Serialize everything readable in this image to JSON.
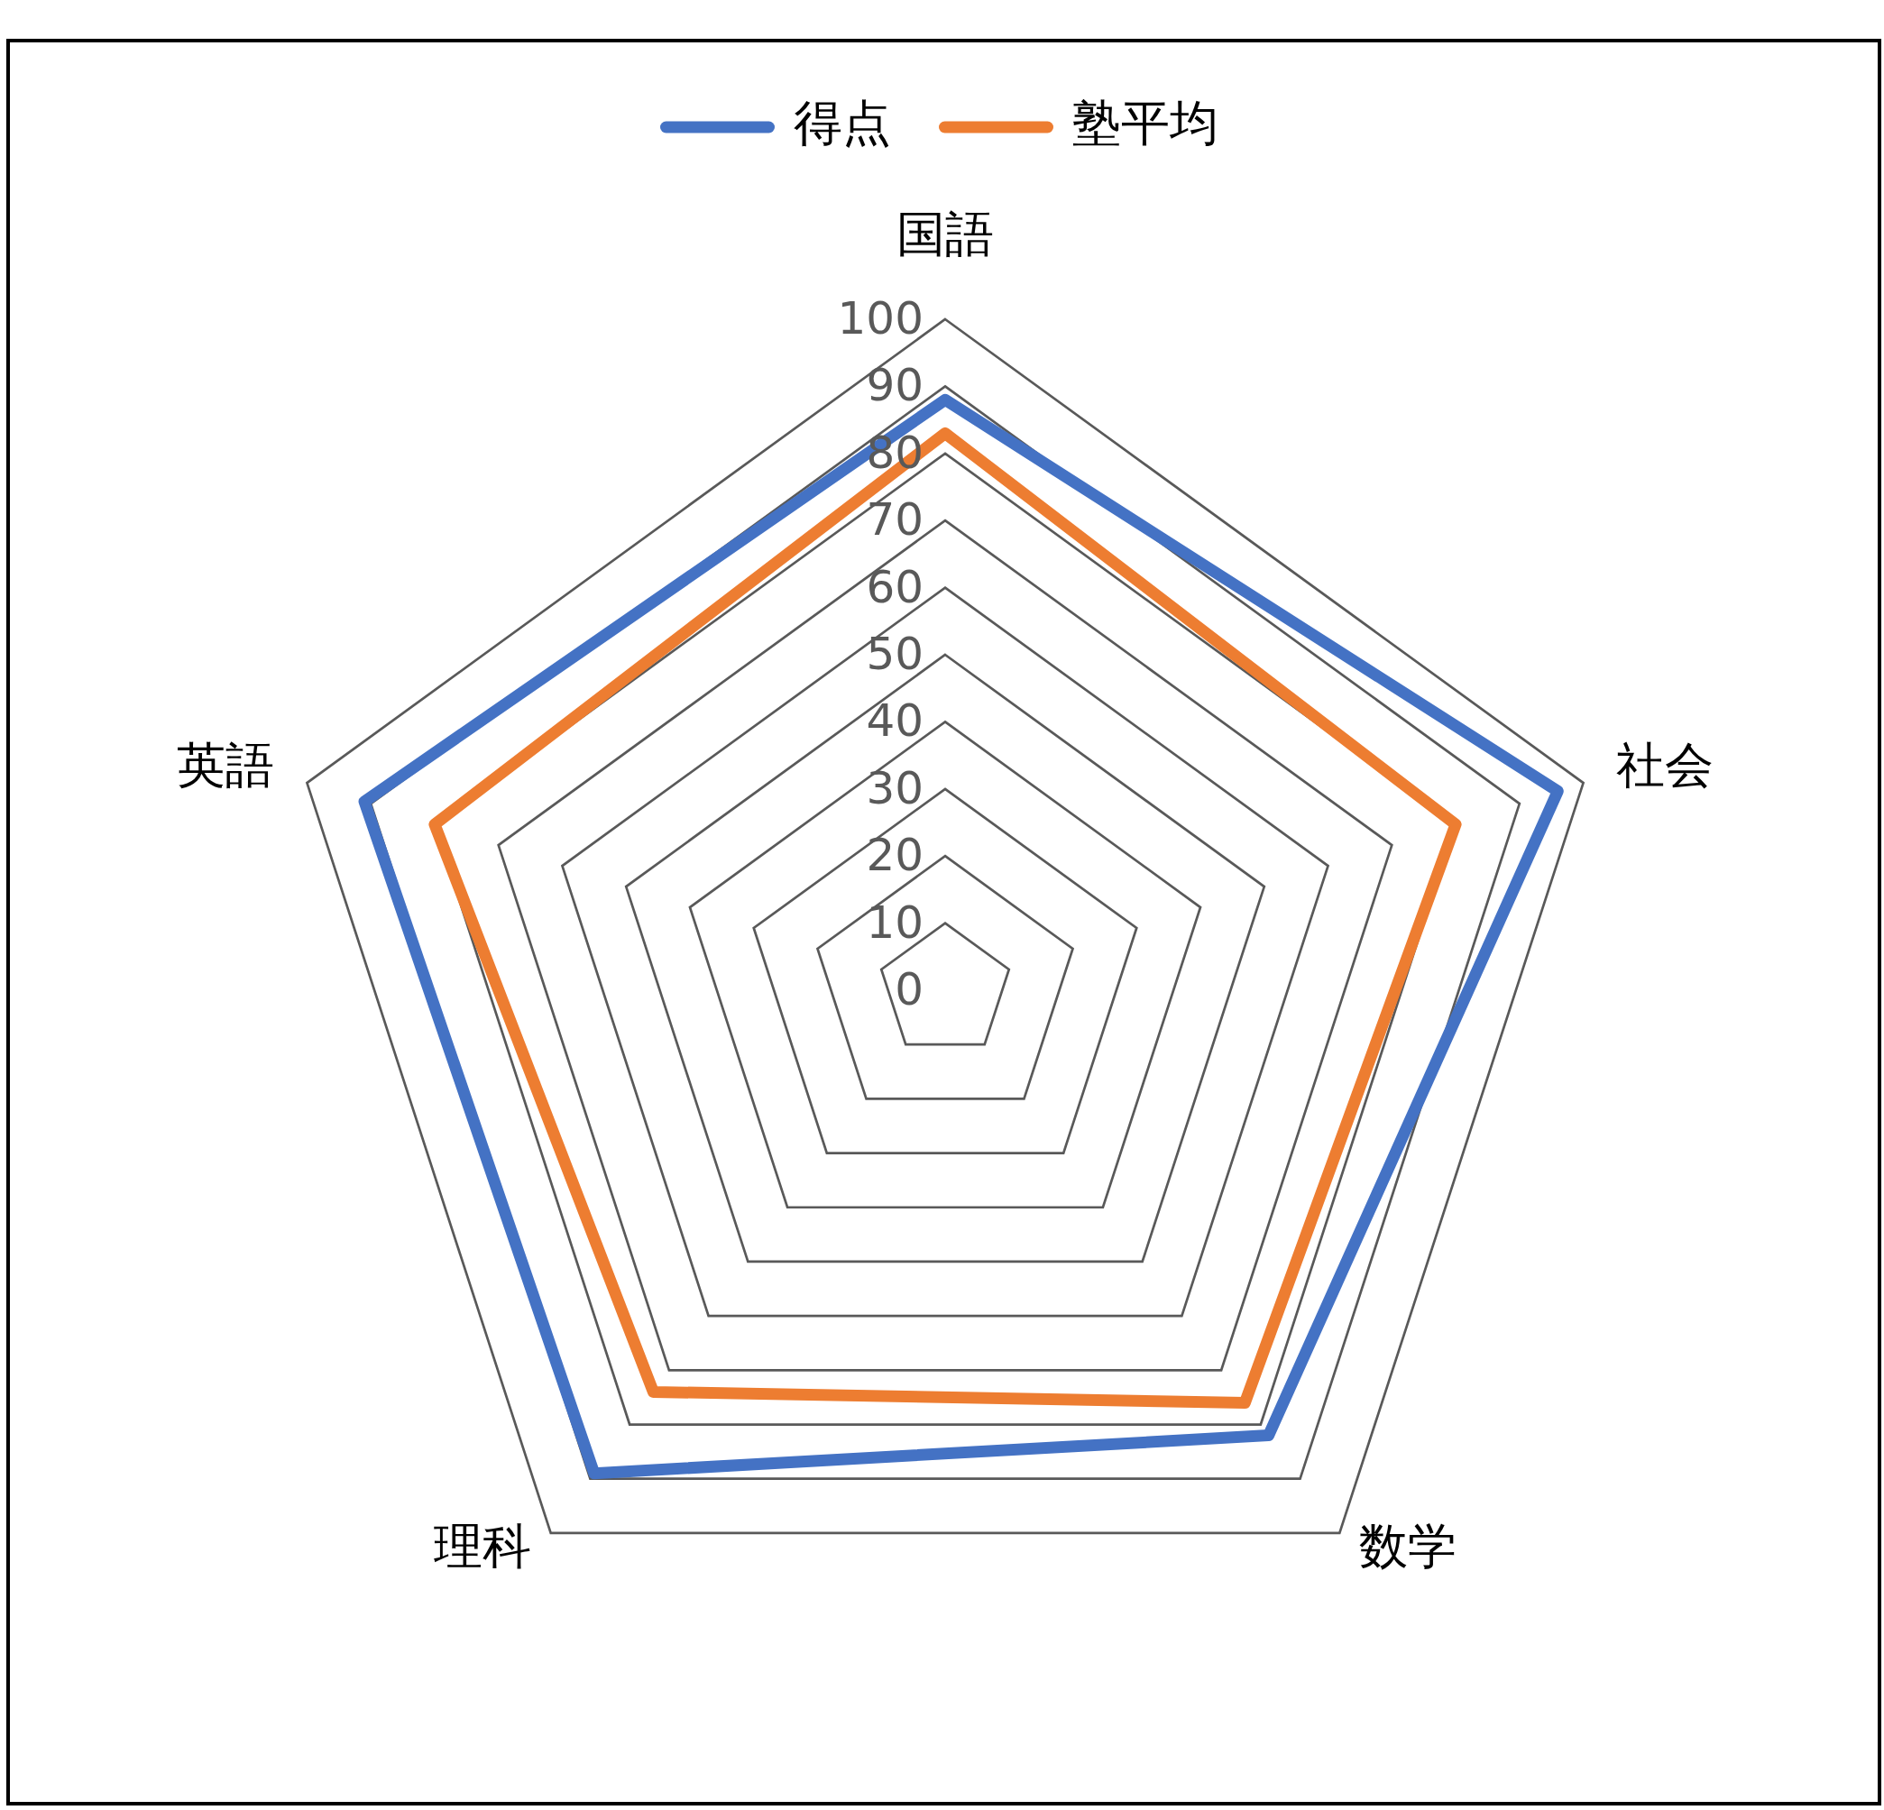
{
  "chart_data": {
    "type": "radar",
    "categories": [
      "国語",
      "社会",
      "数学",
      "理科",
      "英語"
    ],
    "series": [
      {
        "name": "得点",
        "color": "#4472c4",
        "values": [
          88,
          96,
          82,
          89,
          91
        ]
      },
      {
        "name": "塾平均",
        "color": "#ed7d31",
        "values": [
          83,
          80,
          76,
          74,
          80
        ]
      }
    ],
    "ylim": [
      0,
      100
    ],
    "yticks": [
      0,
      10,
      20,
      30,
      40,
      50,
      60,
      70,
      80,
      90,
      100
    ],
    "grid": true,
    "legend": "top",
    "marker": "none",
    "line_style": "solid"
  }
}
